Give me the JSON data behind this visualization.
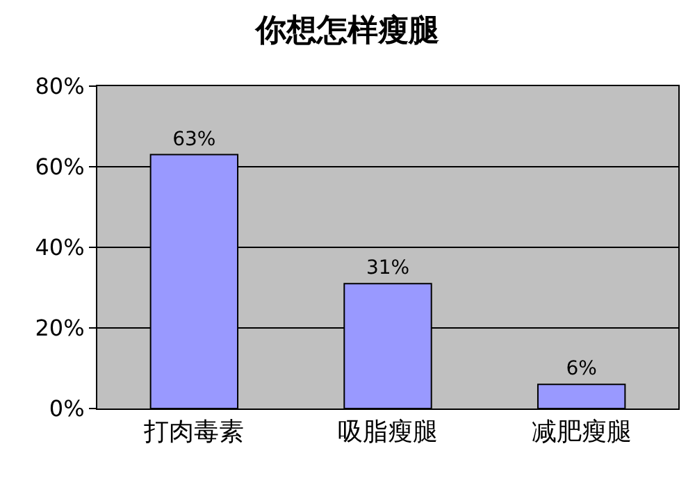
{
  "chart_data": {
    "type": "bar",
    "title": "你想怎样瘦腿",
    "categories": [
      "打肉毒素",
      "吸脂瘦腿",
      "减肥瘦腿"
    ],
    "values": [
      63,
      31,
      6
    ],
    "value_labels": [
      "63%",
      "31%",
      "6%"
    ],
    "color": "#9999ff",
    "ylim": [
      0,
      80
    ],
    "yticks": [
      {
        "value": 0,
        "label": "0%"
      },
      {
        "value": 20,
        "label": "20%"
      },
      {
        "value": 40,
        "label": "40%"
      },
      {
        "value": 60,
        "label": "60%"
      },
      {
        "value": 80,
        "label": "80%"
      }
    ],
    "grid": "y",
    "legend": false
  }
}
